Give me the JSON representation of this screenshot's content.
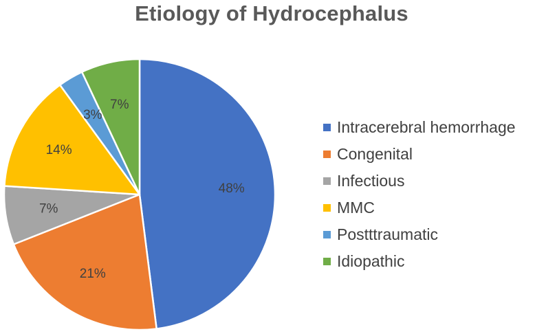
{
  "chart_data": {
    "type": "pie",
    "title": "Etiology of Hydrocephalus",
    "start_angle_deg": 0,
    "direction": "clockwise",
    "legend_position": "right",
    "slices": [
      {
        "label": "Intracerebral hemorrhage",
        "value": 48,
        "display": "48%",
        "color": "#4472C4"
      },
      {
        "label": "Congenital",
        "value": 21,
        "display": "21%",
        "color": "#ED7D31"
      },
      {
        "label": "Infectious",
        "value": 7,
        "display": "7%",
        "color": "#A5A5A5"
      },
      {
        "label": "MMC",
        "value": 14,
        "display": "14%",
        "color": "#FFC000"
      },
      {
        "label": "Postttraumatic",
        "value": 3,
        "display": "3%",
        "color": "#5B9BD5"
      },
      {
        "label": "Idiopathic",
        "value": 7,
        "display": "7%",
        "color": "#70AD47"
      }
    ]
  }
}
